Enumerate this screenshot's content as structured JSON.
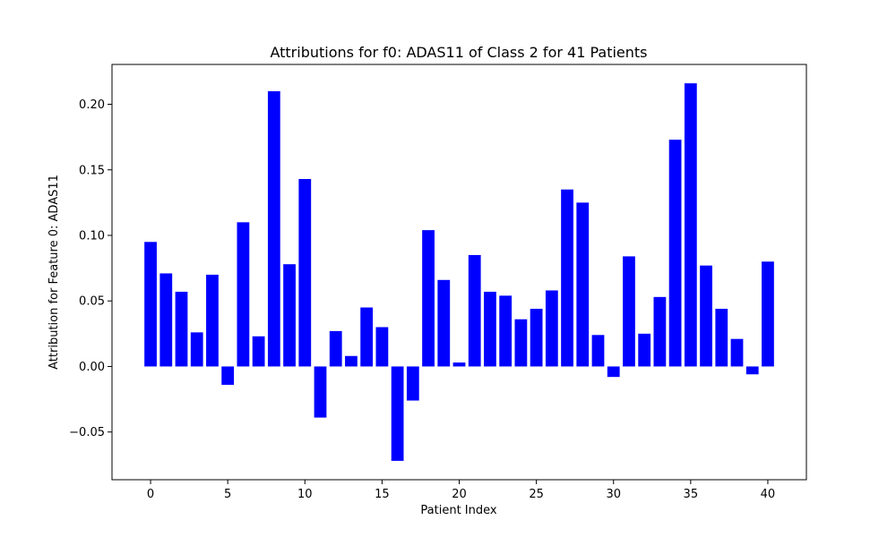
{
  "chart_data": {
    "type": "bar",
    "title": "Attributions for f0: ADAS11 of Class 2 for 41 Patients",
    "xlabel": "Patient Index",
    "ylabel": "Attribution for Feature 0: ADAS11",
    "x": [
      0,
      1,
      2,
      3,
      4,
      5,
      6,
      7,
      8,
      9,
      10,
      11,
      12,
      13,
      14,
      15,
      16,
      17,
      18,
      19,
      20,
      21,
      22,
      23,
      24,
      25,
      26,
      27,
      28,
      29,
      30,
      31,
      32,
      33,
      34,
      35,
      36,
      37,
      38,
      39,
      40
    ],
    "values": [
      0.095,
      0.071,
      0.057,
      0.026,
      0.07,
      -0.014,
      0.11,
      0.023,
      0.21,
      0.078,
      0.143,
      -0.039,
      0.027,
      0.008,
      0.045,
      0.03,
      -0.072,
      -0.026,
      0.104,
      0.066,
      0.003,
      0.085,
      0.057,
      0.054,
      0.036,
      0.044,
      0.058,
      0.135,
      0.125,
      0.024,
      -0.008,
      0.084,
      0.025,
      0.053,
      0.173,
      0.216,
      0.077,
      0.044,
      0.021,
      -0.006,
      0.08
    ],
    "xlim": [
      -2.5,
      42.5
    ],
    "ylim": [
      -0.0864,
      0.2304
    ],
    "xticks": [
      0,
      5,
      10,
      15,
      20,
      25,
      30,
      35,
      40
    ],
    "xtick_labels": [
      "0",
      "5",
      "10",
      "15",
      "20",
      "25",
      "30",
      "35",
      "40"
    ],
    "yticks": [
      -0.05,
      0.0,
      0.05,
      0.1,
      0.15,
      0.2
    ],
    "ytick_labels": [
      "−0.05",
      "0.00",
      "0.05",
      "0.10",
      "0.15",
      "0.20"
    ],
    "bar_color": "#0000ff",
    "grid": false
  }
}
